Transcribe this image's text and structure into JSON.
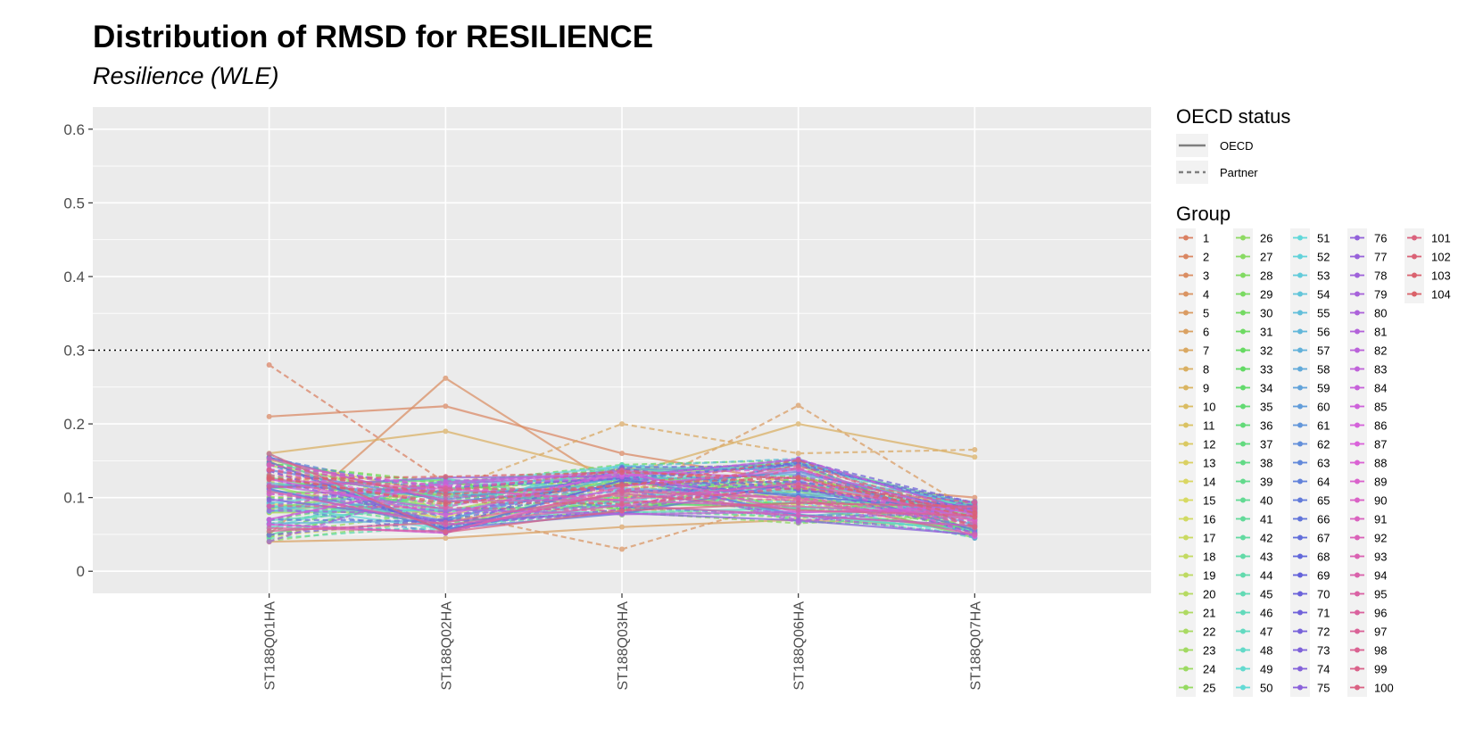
{
  "chart_data": {
    "type": "line",
    "title": "Distribution of RMSD for RESILIENCE",
    "subtitle": "Resilience (WLE)",
    "categories": [
      "ST188Q01HA",
      "ST188Q02HA",
      "ST188Q03HA",
      "ST188Q06HA",
      "ST188Q07HA"
    ],
    "ylim": [
      -0.03,
      0.63
    ],
    "yticks": [
      0,
      0.1,
      0.2,
      0.3,
      0.4,
      0.5,
      0.6
    ],
    "ytick_labels": [
      "0",
      "0.1",
      "0.2",
      "0.3",
      "0.4",
      "0.5",
      "0.6"
    ],
    "threshold": 0.3,
    "grid": true,
    "legend_placement": "right",
    "linetype_legend": {
      "title": "OECD status",
      "entries": [
        {
          "label": "OECD",
          "style": "solid"
        },
        {
          "label": "Partner",
          "style": "dashed"
        }
      ]
    },
    "group_legend_title": "Group",
    "series_count": 104,
    "highlight_series": [
      {
        "group": 1,
        "status": "Partner",
        "values": [
          0.28,
          0.12,
          0.1,
          0.11,
          0.08
        ]
      },
      {
        "group": 2,
        "status": "OECD",
        "values": [
          0.21,
          0.224,
          0.16,
          0.12,
          0.1
        ]
      },
      {
        "group": 3,
        "status": "OECD",
        "values": [
          0.05,
          0.262,
          0.11,
          0.1,
          0.07
        ]
      },
      {
        "group": 4,
        "status": "Partner",
        "values": [
          0.09,
          0.08,
          0.03,
          0.1,
          0.07
        ]
      },
      {
        "group": 5,
        "status": "Partner",
        "values": [
          0.12,
          0.1,
          0.1,
          0.225,
          0.08
        ]
      },
      {
        "group": 6,
        "status": "OECD",
        "values": [
          0.04,
          0.045,
          0.06,
          0.07,
          0.06
        ]
      },
      {
        "group": 7,
        "status": "Partner",
        "values": [
          0.1,
          0.11,
          0.2,
          0.16,
          0.165
        ]
      },
      {
        "group": 8,
        "status": "OECD",
        "values": [
          0.16,
          0.19,
          0.13,
          0.2,
          0.155
        ]
      }
    ]
  }
}
